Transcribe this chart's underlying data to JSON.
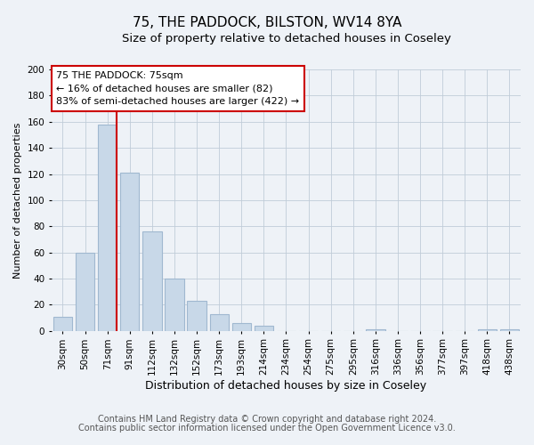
{
  "title": "75, THE PADDOCK, BILSTON, WV14 8YA",
  "subtitle": "Size of property relative to detached houses in Coseley",
  "xlabel": "Distribution of detached houses by size in Coseley",
  "ylabel": "Number of detached properties",
  "bar_labels": [
    "30sqm",
    "50sqm",
    "71sqm",
    "91sqm",
    "112sqm",
    "132sqm",
    "152sqm",
    "173sqm",
    "193sqm",
    "214sqm",
    "234sqm",
    "254sqm",
    "275sqm",
    "295sqm",
    "316sqm",
    "336sqm",
    "356sqm",
    "377sqm",
    "397sqm",
    "418sqm",
    "438sqm"
  ],
  "bar_values": [
    11,
    60,
    158,
    121,
    76,
    40,
    23,
    13,
    6,
    4,
    0,
    0,
    0,
    0,
    1,
    0,
    0,
    0,
    0,
    1,
    1
  ],
  "bar_color": "#c8d8e8",
  "bar_edge_color": "#a0b8d0",
  "vline_color": "#cc0000",
  "vline_x_index": 2,
  "ylim": [
    0,
    200
  ],
  "yticks": [
    0,
    20,
    40,
    60,
    80,
    100,
    120,
    140,
    160,
    180,
    200
  ],
  "annotation_line1": "75 THE PADDOCK: 75sqm",
  "annotation_line2": "← 16% of detached houses are smaller (82)",
  "annotation_line3": "83% of semi-detached houses are larger (422) →",
  "annotation_box_color": "#cc0000",
  "footer_line1": "Contains HM Land Registry data © Crown copyright and database right 2024.",
  "footer_line2": "Contains public sector information licensed under the Open Government Licence v3.0.",
  "background_color": "#eef2f7",
  "plot_bg_color": "#eef2f7",
  "title_fontsize": 11,
  "subtitle_fontsize": 9.5,
  "xlabel_fontsize": 9,
  "ylabel_fontsize": 8,
  "tick_fontsize": 7.5,
  "annotation_fontsize": 8,
  "footer_fontsize": 7
}
